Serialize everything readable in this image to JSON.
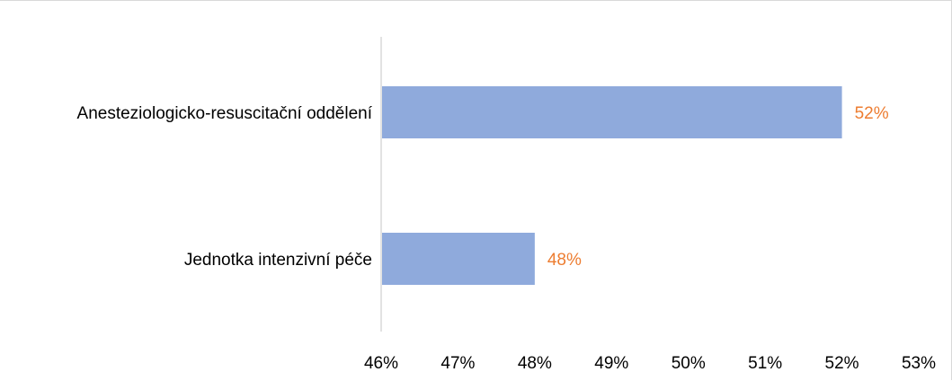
{
  "chart_data": {
    "type": "bar",
    "orientation": "horizontal",
    "categories": [
      "Anesteziologicko-resuscitační oddělení",
      "Jednotka intenzivní péče"
    ],
    "values": [
      0.52,
      0.48
    ],
    "data_labels": [
      "52%",
      "48%"
    ],
    "xlim": [
      0.46,
      0.53
    ],
    "x_ticks": [
      0.46,
      0.47,
      0.48,
      0.49,
      0.5,
      0.51,
      0.52,
      0.53
    ],
    "x_tick_labels": [
      "46%",
      "47%",
      "48%",
      "49%",
      "50%",
      "51%",
      "52%",
      "53%"
    ],
    "title": "",
    "xlabel": "",
    "ylabel": "",
    "grid": false,
    "legend": "none",
    "bar_color": "#8faadc",
    "data_label_color": "#ed7d31",
    "axis_color": "#d9d9d9"
  }
}
